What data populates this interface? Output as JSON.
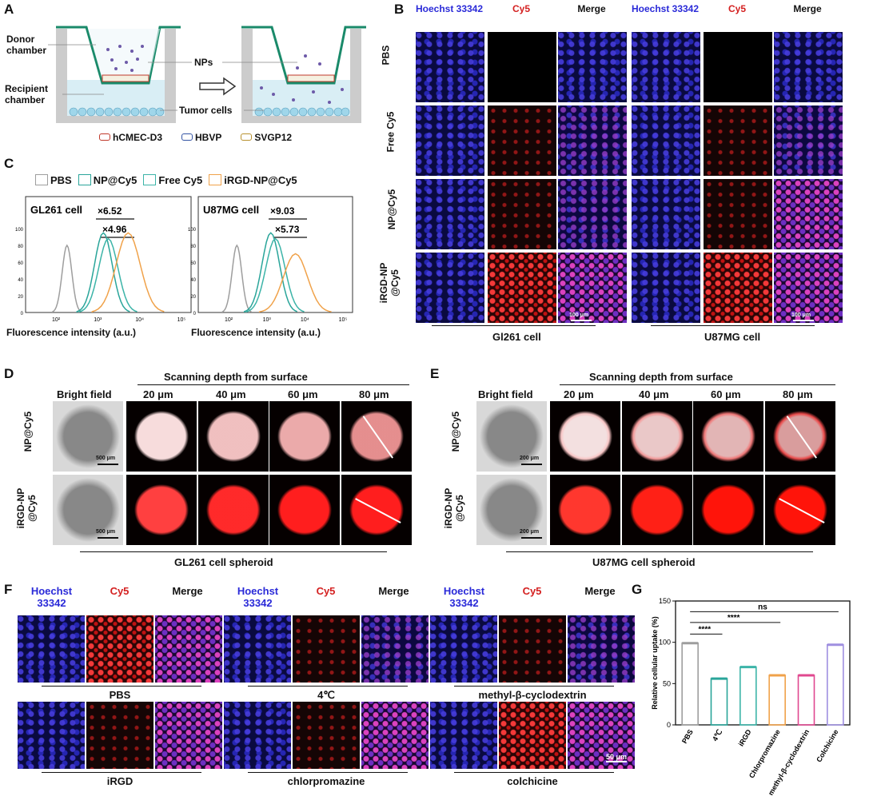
{
  "panels": {
    "a": "A",
    "b": "B",
    "c": "C",
    "d": "D",
    "e": "E",
    "f": "F",
    "g": "G"
  },
  "a": {
    "donor": "Donor chamber",
    "recipient": "Recipient chamber",
    "nps": "NPs",
    "tumor": "Tumor cells",
    "legend": [
      {
        "label": "hCMEC-D3",
        "color": "#c0392b"
      },
      {
        "label": "HBVP",
        "color": "#3454a4"
      },
      {
        "label": "SVGP12",
        "color": "#b8912f"
      }
    ],
    "colors": {
      "insert": "#1a8a6a",
      "np": "#6d5aa8",
      "cells": "#9fd6ea"
    }
  },
  "b": {
    "cols": [
      "Hoechst 33342",
      "Cy5",
      "Merge",
      "Hoechst 33342",
      "Cy5",
      "Merge"
    ],
    "rows": [
      "PBS",
      "Free Cy5",
      "NP@Cy5",
      "iRGD-NP @Cy5"
    ],
    "groups": [
      "Gl261 cell",
      "U87MG cell"
    ],
    "scale": "100 μm"
  },
  "c": {
    "legend": [
      {
        "label": "PBS",
        "color": "#9e9e9e"
      },
      {
        "label": "NP@Cy5",
        "color": "#2aa59a"
      },
      {
        "label": "Free Cy5",
        "color": "#3cb4a8"
      },
      {
        "label": "iRGD-NP@Cy5",
        "color": "#f0a24a"
      }
    ],
    "xlabel": "Fluorescence intensity (a.u.)",
    "charts": [
      {
        "title": "GL261 cell",
        "fold1": "×6.52",
        "fold2": "×4.96"
      },
      {
        "title": "U87MG cell",
        "fold1": "×9.03",
        "fold2": "×5.73"
      }
    ],
    "yticks": [
      "100",
      "80",
      "60",
      "40",
      "20",
      "0"
    ],
    "xticks": [
      "10²",
      "10³",
      "10⁴",
      "10⁵"
    ]
  },
  "d": {
    "header": "Scanning depth from surface",
    "bright": "Bright field",
    "depths": [
      "20 μm",
      "40 μm",
      "60 μm",
      "80 μm"
    ],
    "rows": [
      "NP@Cy5",
      "iRGD-NP @Cy5"
    ],
    "scale": "500 μm",
    "footer": "GL261 cell spheroid"
  },
  "e": {
    "header": "Scanning depth from surface",
    "bright": "Bright field",
    "depths": [
      "20 μm",
      "40 μm",
      "60 μm",
      "80 μm"
    ],
    "rows": [
      "NP@Cy5",
      "iRGD-NP @Cy5"
    ],
    "scale": "200 μm",
    "footer": "U87MG cell spheroid"
  },
  "f": {
    "cols": [
      "Hoechst 33342",
      "Cy5",
      "Merge"
    ],
    "top": [
      "PBS",
      "4℃",
      "methyl-β-cyclodextrin"
    ],
    "bottom": [
      "iRGD",
      "chlorpromazine",
      "colchicine"
    ],
    "scale": "50 μm"
  },
  "chart_data": {
    "type": "bar",
    "ylabel": "Relative cellular uptake (%)",
    "categories": [
      "PBS",
      "4℃",
      "iRGD",
      "Chlorpromazine",
      "methyl-β-cyclodextrin",
      "Colchicine"
    ],
    "values": [
      99,
      56,
      70,
      60,
      60,
      97
    ],
    "colors": [
      "#9e9e9e",
      "#2aa59a",
      "#3cb4a8",
      "#f0a24a",
      "#e0488f",
      "#9f8fe0"
    ],
    "ylim": [
      0,
      150
    ],
    "yticks": [
      "0",
      "50",
      "100",
      "150"
    ],
    "significance": [
      "****",
      "****",
      "ns"
    ]
  }
}
